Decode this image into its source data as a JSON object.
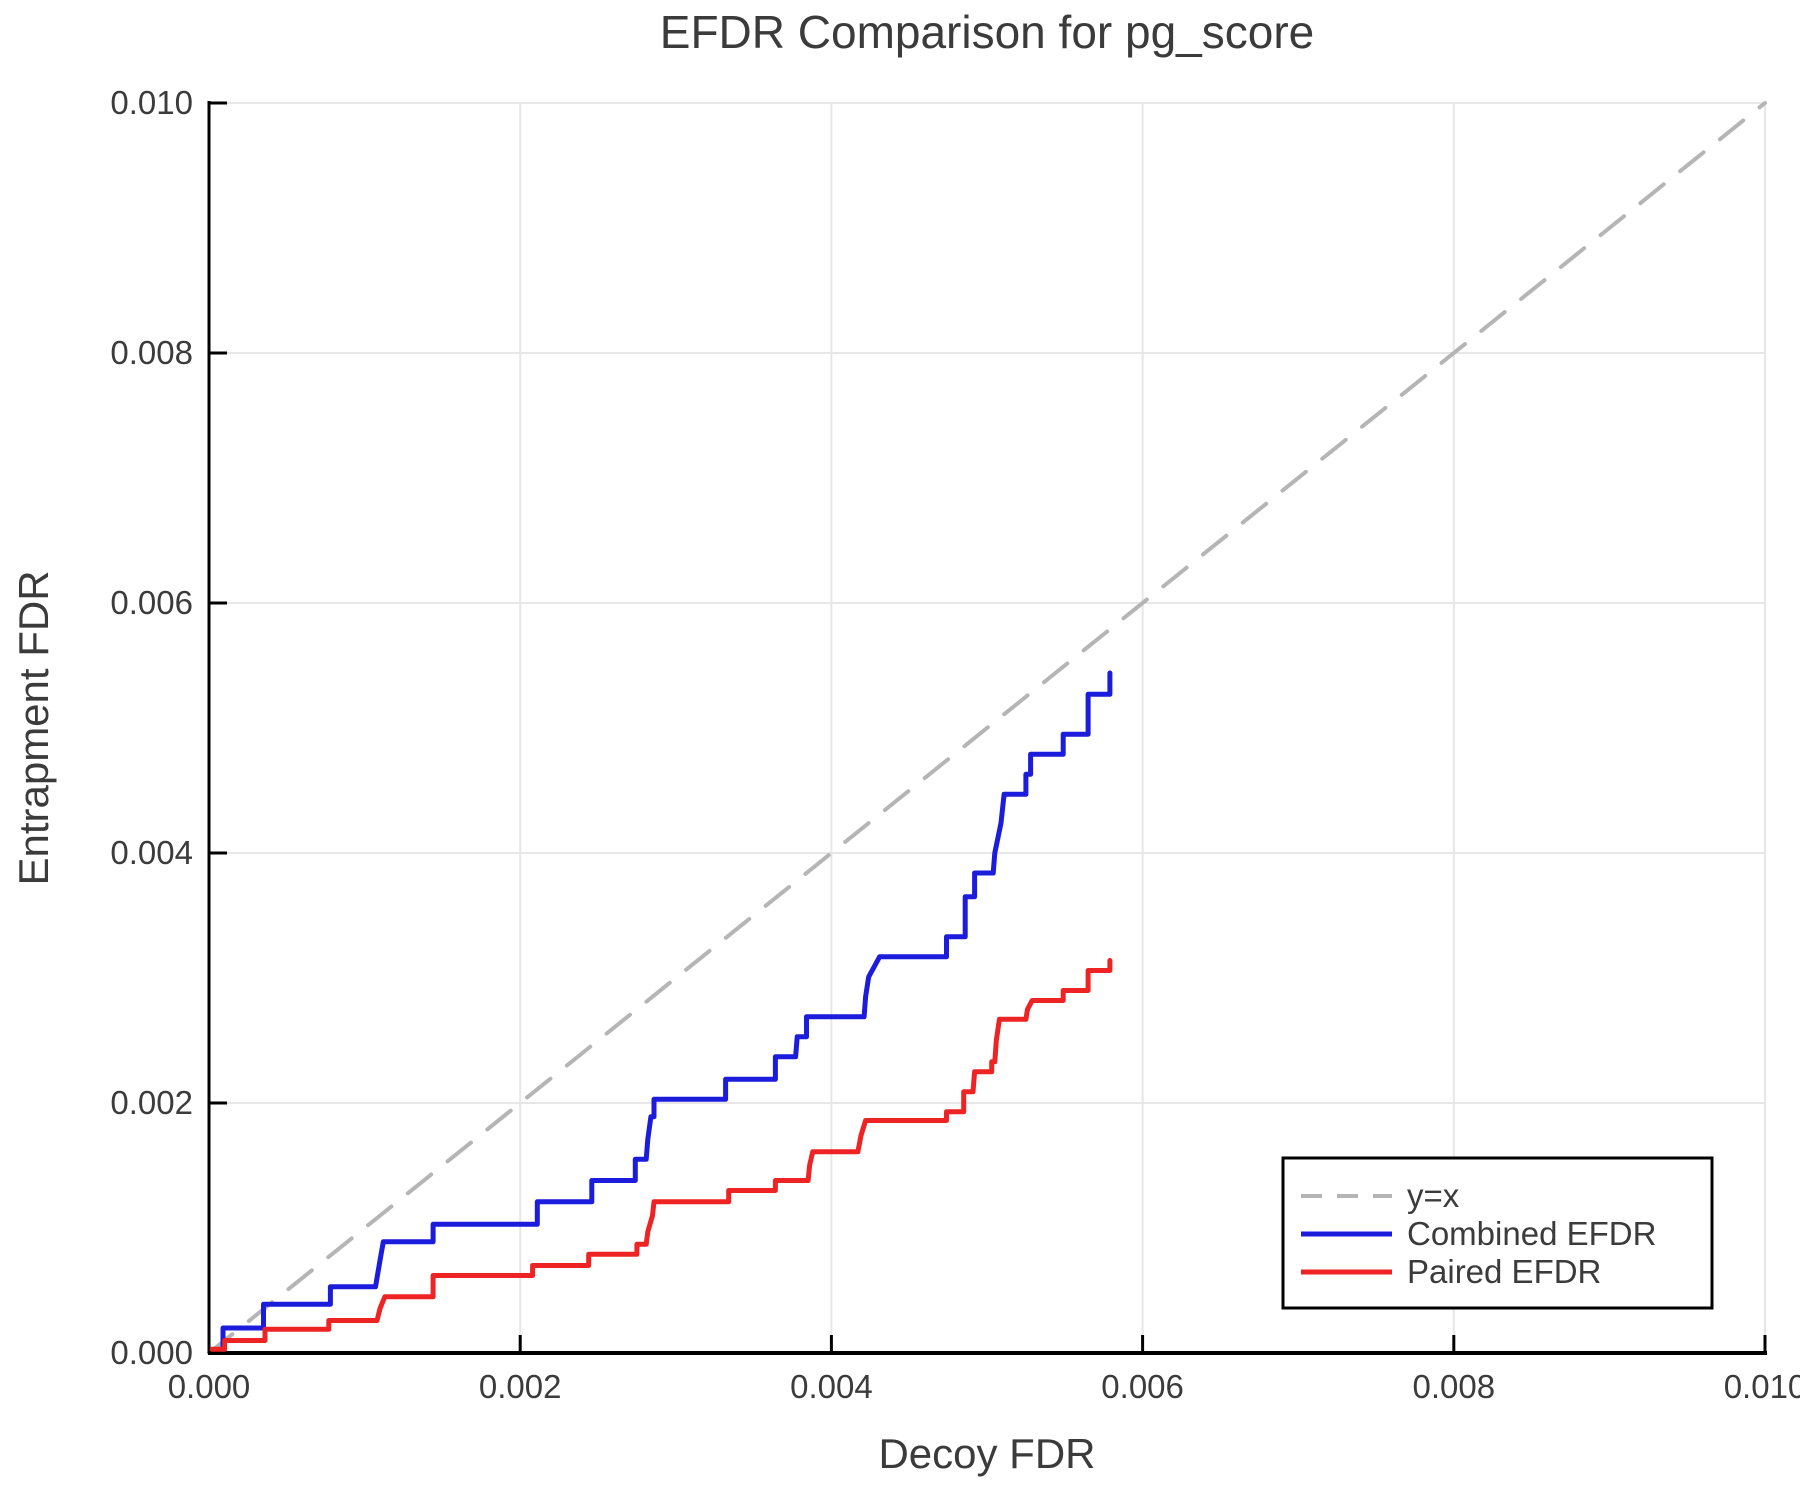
{
  "title": "EFDR Comparison for pg_score",
  "colors": {
    "background": "#ffffff",
    "axis": "#000000",
    "grid": "#e7e7e7",
    "text": "#3b3b3b",
    "diagonal": "#b5b5b5",
    "combined": "#1c1cdc",
    "paired": "#ee2424",
    "legend_border": "#000000",
    "legend_background": "#ffffff"
  },
  "chart_data": {
    "type": "line",
    "title": "EFDR Comparison for pg_score",
    "xlabel": "Decoy FDR",
    "ylabel": "Entrapment FDR",
    "xlim": [
      0.0,
      0.01
    ],
    "ylim": [
      0.0,
      0.01
    ],
    "grid": true,
    "legend_position": "bottom-right",
    "xticks": {
      "values": [
        0.0,
        0.002,
        0.004,
        0.006,
        0.008,
        0.01
      ],
      "labels": [
        "0.000",
        "0.002",
        "0.004",
        "0.006",
        "0.008",
        "0.010"
      ]
    },
    "yticks": {
      "values": [
        0.0,
        0.002,
        0.004,
        0.006,
        0.008,
        0.01
      ],
      "labels": [
        "0.000",
        "0.002",
        "0.004",
        "0.006",
        "0.008",
        "0.010"
      ]
    },
    "series": [
      {
        "name": "y=x",
        "style": "dashed",
        "color_key": "diagonal",
        "width": 4,
        "points": [
          [
            0.0,
            0.0
          ],
          [
            0.01,
            0.01
          ]
        ]
      },
      {
        "name": "Combined EFDR",
        "style": "solid",
        "color_key": "combined",
        "width": 5,
        "points": [
          [
            9e-05,
            3e-05
          ],
          [
            9e-05,
            0.0002
          ],
          [
            0.00035,
            0.0002
          ],
          [
            0.00035,
            0.00039
          ],
          [
            0.00078,
            0.00039
          ],
          [
            0.00078,
            0.00053
          ],
          [
            0.00107,
            0.00053
          ],
          [
            0.0011,
            0.00075
          ],
          [
            0.00112,
            0.00089
          ],
          [
            0.00144,
            0.00089
          ],
          [
            0.00144,
            0.00103
          ],
          [
            0.00211,
            0.00103
          ],
          [
            0.00211,
            0.00121
          ],
          [
            0.00246,
            0.00121
          ],
          [
            0.00246,
            0.00138
          ],
          [
            0.00274,
            0.00138
          ],
          [
            0.00274,
            0.00155
          ],
          [
            0.00281,
            0.00155
          ],
          [
            0.00282,
            0.00171
          ],
          [
            0.00284,
            0.00189
          ],
          [
            0.00286,
            0.00189
          ],
          [
            0.00286,
            0.00203
          ],
          [
            0.00332,
            0.00203
          ],
          [
            0.00332,
            0.00219
          ],
          [
            0.00364,
            0.00219
          ],
          [
            0.00364,
            0.00237
          ],
          [
            0.00377,
            0.00237
          ],
          [
            0.00378,
            0.00253
          ],
          [
            0.00384,
            0.00253
          ],
          [
            0.00384,
            0.00269
          ],
          [
            0.00421,
            0.00269
          ],
          [
            0.00422,
            0.00285
          ],
          [
            0.00424,
            0.00301
          ],
          [
            0.00431,
            0.00317
          ],
          [
            0.00474,
            0.00317
          ],
          [
            0.00474,
            0.00333
          ],
          [
            0.00486,
            0.00333
          ],
          [
            0.00486,
            0.00365
          ],
          [
            0.00492,
            0.00365
          ],
          [
            0.00492,
            0.00384
          ],
          [
            0.00504,
            0.00384
          ],
          [
            0.00505,
            0.004
          ],
          [
            0.00509,
            0.00424
          ],
          [
            0.00511,
            0.00447
          ],
          [
            0.00525,
            0.00447
          ],
          [
            0.00525,
            0.00463
          ],
          [
            0.00528,
            0.00463
          ],
          [
            0.00528,
            0.00479
          ],
          [
            0.00549,
            0.00479
          ],
          [
            0.00549,
            0.00495
          ],
          [
            0.00565,
            0.00495
          ],
          [
            0.00565,
            0.00527
          ],
          [
            0.00579,
            0.00527
          ],
          [
            0.00579,
            0.00544
          ]
        ]
      },
      {
        "name": "Paired EFDR",
        "style": "solid",
        "color_key": "paired",
        "width": 5,
        "points": [
          [
            2e-05,
            3e-05
          ],
          [
            0.0001,
            3e-05
          ],
          [
            0.0001,
            0.0001
          ],
          [
            0.00036,
            0.0001
          ],
          [
            0.00036,
            0.00019
          ],
          [
            0.00077,
            0.00019
          ],
          [
            0.00077,
            0.00026
          ],
          [
            0.00108,
            0.00026
          ],
          [
            0.0011,
            0.00036
          ],
          [
            0.00113,
            0.00045
          ],
          [
            0.00144,
            0.00045
          ],
          [
            0.00144,
            0.00062
          ],
          [
            0.00208,
            0.00062
          ],
          [
            0.00208,
            0.0007
          ],
          [
            0.00244,
            0.0007
          ],
          [
            0.00244,
            0.00079
          ],
          [
            0.00275,
            0.00079
          ],
          [
            0.00275,
            0.00087
          ],
          [
            0.00281,
            0.00087
          ],
          [
            0.00282,
            0.00097
          ],
          [
            0.00285,
            0.0011
          ],
          [
            0.00286,
            0.00121
          ],
          [
            0.00334,
            0.00121
          ],
          [
            0.00334,
            0.0013
          ],
          [
            0.00364,
            0.0013
          ],
          [
            0.00364,
            0.00138
          ],
          [
            0.00385,
            0.00138
          ],
          [
            0.00386,
            0.0015
          ],
          [
            0.00388,
            0.00161
          ],
          [
            0.00417,
            0.00161
          ],
          [
            0.00419,
            0.00174
          ],
          [
            0.00422,
            0.00186
          ],
          [
            0.00474,
            0.00186
          ],
          [
            0.00474,
            0.00193
          ],
          [
            0.00485,
            0.00193
          ],
          [
            0.00485,
            0.00209
          ],
          [
            0.00491,
            0.00209
          ],
          [
            0.00492,
            0.00225
          ],
          [
            0.00503,
            0.00225
          ],
          [
            0.00503,
            0.00233
          ],
          [
            0.00505,
            0.00233
          ],
          [
            0.00506,
            0.0025
          ],
          [
            0.00508,
            0.00267
          ],
          [
            0.00525,
            0.00267
          ],
          [
            0.00526,
            0.00275
          ],
          [
            0.00529,
            0.00282
          ],
          [
            0.00549,
            0.00282
          ],
          [
            0.00549,
            0.0029
          ],
          [
            0.00565,
            0.0029
          ],
          [
            0.00565,
            0.00306
          ],
          [
            0.00579,
            0.00306
          ],
          [
            0.00579,
            0.00314
          ]
        ]
      }
    ]
  }
}
